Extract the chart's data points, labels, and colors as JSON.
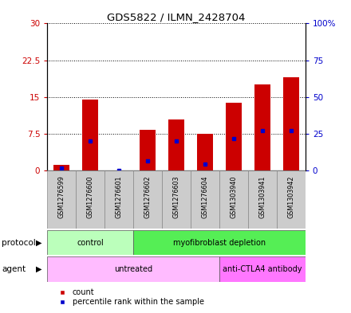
{
  "title": "GDS5822 / ILMN_2428704",
  "samples": [
    "GSM1276599",
    "GSM1276600",
    "GSM1276601",
    "GSM1276602",
    "GSM1276603",
    "GSM1276604",
    "GSM1303940",
    "GSM1303941",
    "GSM1303942"
  ],
  "counts": [
    1.2,
    14.5,
    0.05,
    8.3,
    10.5,
    7.5,
    13.8,
    17.5,
    19.0
  ],
  "percentiles": [
    1.5,
    20.0,
    0.3,
    6.5,
    20.0,
    4.5,
    22.0,
    27.0,
    27.0
  ],
  "ylim_left": [
    0,
    30
  ],
  "ylim_right": [
    0,
    100
  ],
  "yticks_left": [
    0,
    7.5,
    15,
    22.5,
    30
  ],
  "yticks_right": [
    0,
    25,
    50,
    75,
    100
  ],
  "ytick_labels_left": [
    "0",
    "7.5",
    "15",
    "22.5",
    "30"
  ],
  "ytick_labels_right": [
    "0",
    "25",
    "50",
    "75",
    "100%"
  ],
  "bar_color": "#cc0000",
  "percentile_color": "#0000cc",
  "bar_width": 0.55,
  "protocol_groups": [
    {
      "label": "control",
      "start": 0,
      "end": 3,
      "color": "#bbffbb"
    },
    {
      "label": "myofibroblast depletion",
      "start": 3,
      "end": 9,
      "color": "#55ee55"
    }
  ],
  "agent_groups": [
    {
      "label": "untreated",
      "start": 0,
      "end": 6,
      "color": "#ffbbff"
    },
    {
      "label": "anti-CTLA4 antibody",
      "start": 6,
      "end": 9,
      "color": "#ff77ff"
    }
  ],
  "protocol_label": "protocol",
  "agent_label": "agent",
  "legend_count_label": "count",
  "legend_percentile_label": "percentile rank within the sample",
  "background_color": "#ffffff",
  "plot_bg_color": "#ffffff",
  "axis_color_left": "#cc0000",
  "axis_color_right": "#0000cc",
  "tick_label_box_color": "#cccccc",
  "tick_label_box_edge": "#aaaaaa"
}
